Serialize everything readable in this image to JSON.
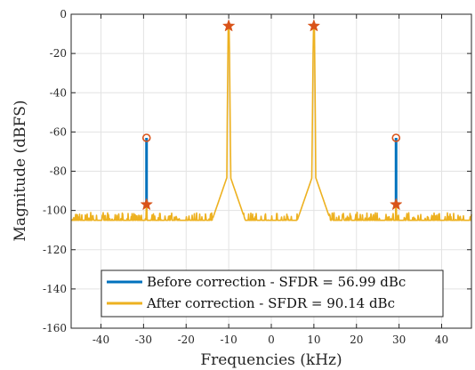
{
  "chart_data": {
    "type": "line",
    "xlabel": "Frequencies (kHz)",
    "ylabel": "Magnitude (dBFS)",
    "xlim": [
      -47,
      47
    ],
    "ylim": [
      -160,
      0
    ],
    "xticks": [
      -40,
      -30,
      -20,
      -10,
      0,
      10,
      20,
      30,
      40
    ],
    "yticks": [
      0,
      -20,
      -40,
      -60,
      -80,
      -100,
      -120,
      -140,
      -160
    ],
    "grid": true,
    "legend_position": "bottom-center",
    "colors": {
      "before": "#0072BD",
      "after": "#EDB120",
      "marker": "#D95319"
    },
    "series": [
      {
        "name": "Before correction - SFDR = 56.99 dBc",
        "style": "stem",
        "x": [
          -29.3,
          29.3
        ],
        "y": [
          -63,
          -63
        ],
        "baseline": [
          -97,
          -97
        ]
      },
      {
        "name": "After correction - SFDR = 90.14 dBc",
        "style": "noisy-spectrum",
        "noise_floor_db": -108,
        "tones_khz": [
          -10,
          10
        ],
        "tone_peak_db": -6
      }
    ],
    "markers": {
      "fundamental_stars": {
        "x": [
          -10,
          10
        ],
        "y": [
          -6,
          -6
        ]
      },
      "spur_stars": {
        "x": [
          -29.3,
          29.3
        ],
        "y": [
          -97,
          -97
        ]
      },
      "spur_circles": {
        "x": [
          -29.3,
          29.3
        ],
        "y": [
          -63,
          -63
        ]
      }
    }
  }
}
